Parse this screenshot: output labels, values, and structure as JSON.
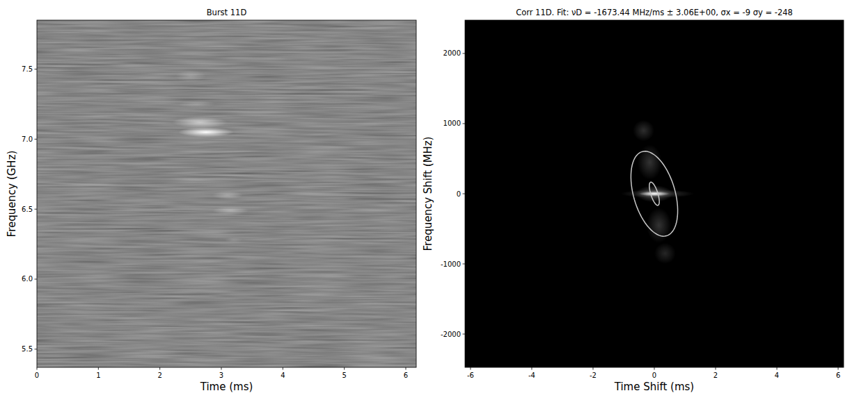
{
  "chart_data": [
    {
      "type": "spectrogram",
      "title": "Burst 11D",
      "xlabel": "Time (ms)",
      "ylabel": "Frequency (GHz)",
      "xlim": [
        0,
        6.17
      ],
      "ylim": [
        5.37,
        7.85
      ],
      "xticks": [
        0,
        1,
        2,
        3,
        4,
        5,
        6
      ],
      "yticks": [
        5.5,
        {
          "value": 6,
          "label": "6.0"
        },
        6.5,
        {
          "value": 7,
          "label": "7.0"
        },
        7.5
      ],
      "components": [
        {
          "time": 2.75,
          "freq": 7.05,
          "dt": 0.45,
          "df": 0.035,
          "intensity": 1.0
        },
        {
          "time": 2.65,
          "freq": 7.12,
          "dt": 0.45,
          "df": 0.04,
          "intensity": 0.6
        },
        {
          "time": 2.5,
          "freq": 7.45,
          "dt": 0.25,
          "df": 0.04,
          "intensity": 0.25
        },
        {
          "time": 2.6,
          "freq": 7.25,
          "dt": 0.3,
          "df": 0.03,
          "intensity": 0.2
        },
        {
          "time": 3.1,
          "freq": 6.6,
          "dt": 0.25,
          "df": 0.03,
          "intensity": 0.3
        },
        {
          "time": 3.15,
          "freq": 6.49,
          "dt": 0.3,
          "df": 0.03,
          "intensity": 0.35
        },
        {
          "time": 3.2,
          "freq": 6.28,
          "dt": 0.15,
          "df": 0.02,
          "intensity": 0.15
        }
      ]
    },
    {
      "type": "correlation",
      "title": "Corr 11D. Fit: νD = -1673.44 MHz/ms ± 3.06E+00, σx = -9 σy = -248",
      "xlabel": "Time Shift (ms)",
      "ylabel": "Frequency Shift (MHz)",
      "xlim": [
        -6.18,
        6.18
      ],
      "ylim": [
        -2475,
        2475
      ],
      "xticks": [
        -6,
        -4,
        -2,
        0,
        2,
        4,
        6
      ],
      "yticks": [
        -2000,
        -1000,
        0,
        1000,
        2000
      ],
      "components": [
        {
          "time": 0.1,
          "freq": 0,
          "dt": 1.2,
          "df": 60,
          "intensity": 0.25
        },
        {
          "time": 0,
          "freq": 0,
          "dt": 0.6,
          "df": 120,
          "intensity": 0.35
        },
        {
          "time": -0.15,
          "freq": 450,
          "dt": 0.4,
          "df": 250,
          "intensity": 0.2
        },
        {
          "time": 0.15,
          "freq": -450,
          "dt": 0.4,
          "df": 250,
          "intensity": 0.2
        },
        {
          "time": -0.35,
          "freq": 900,
          "dt": 0.35,
          "df": 150,
          "intensity": 0.18
        },
        {
          "time": 0.35,
          "freq": -850,
          "dt": 0.35,
          "df": 150,
          "intensity": 0.15
        },
        {
          "time": 0,
          "freq": 0,
          "dt": 0.5,
          "df": 35,
          "intensity": 1.0
        }
      ],
      "ellipses": [
        {
          "time": 0,
          "freq": 0,
          "major_dt": 0.4,
          "major_df": -600,
          "minor_dt": 0.65,
          "minor_df": 84
        },
        {
          "time": 0,
          "freq": 0,
          "major_dt": 0.12,
          "major_df": -165,
          "minor_dt": 0.11,
          "minor_df": 14
        }
      ]
    }
  ]
}
